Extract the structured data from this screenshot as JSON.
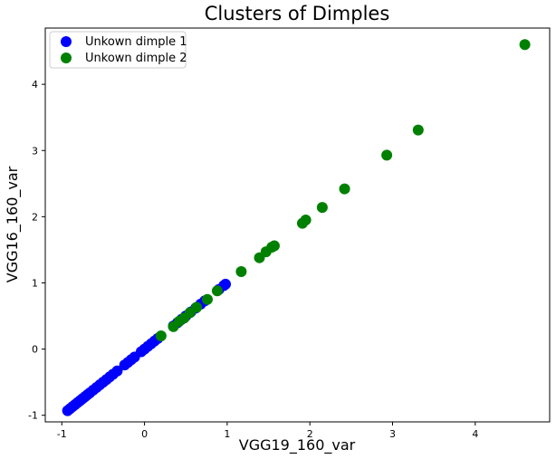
{
  "chart_data": {
    "type": "scatter",
    "title": "Clusters of Dimples",
    "xlabel": "VGG19_160_var",
    "ylabel": "VGG16_160_var",
    "xlim": [
      -1.2,
      4.9
    ],
    "ylim": [
      -1.1,
      4.85
    ],
    "xticks": [
      -1,
      0,
      1,
      2,
      3,
      4
    ],
    "yticks": [
      -1,
      0,
      1,
      2,
      3,
      4
    ],
    "grid": false,
    "legend_position": "top-left",
    "series": [
      {
        "name": "Unkown dimple 1",
        "color": "#0000ff",
        "points": [
          [
            -0.93,
            -0.93
          ],
          [
            -0.9,
            -0.9
          ],
          [
            -0.87,
            -0.87
          ],
          [
            -0.84,
            -0.84
          ],
          [
            -0.81,
            -0.81
          ],
          [
            -0.78,
            -0.78
          ],
          [
            -0.75,
            -0.75
          ],
          [
            -0.72,
            -0.72
          ],
          [
            -0.69,
            -0.69
          ],
          [
            -0.66,
            -0.66
          ],
          [
            -0.62,
            -0.62
          ],
          [
            -0.58,
            -0.58
          ],
          [
            -0.54,
            -0.54
          ],
          [
            -0.5,
            -0.5
          ],
          [
            -0.46,
            -0.46
          ],
          [
            -0.42,
            -0.42
          ],
          [
            -0.38,
            -0.38
          ],
          [
            -0.33,
            -0.33
          ],
          [
            -0.24,
            -0.24
          ],
          [
            -0.2,
            -0.2
          ],
          [
            -0.16,
            -0.16
          ],
          [
            -0.12,
            -0.12
          ],
          [
            -0.04,
            -0.04
          ],
          [
            0.0,
            0.0
          ],
          [
            0.04,
            0.04
          ],
          [
            0.08,
            0.08
          ],
          [
            0.12,
            0.12
          ],
          [
            0.16,
            0.16
          ],
          [
            0.35,
            0.35
          ],
          [
            0.4,
            0.4
          ],
          [
            0.45,
            0.45
          ],
          [
            0.5,
            0.5
          ],
          [
            0.56,
            0.56
          ],
          [
            0.62,
            0.62
          ],
          [
            0.68,
            0.68
          ],
          [
            0.73,
            0.73
          ],
          [
            0.9,
            0.9
          ],
          [
            0.96,
            0.96
          ],
          [
            0.98,
            0.98
          ]
        ]
      },
      {
        "name": "Unkown dimple 2",
        "color": "#008000",
        "points": [
          [
            0.2,
            0.2
          ],
          [
            0.35,
            0.34
          ],
          [
            0.42,
            0.42
          ],
          [
            0.48,
            0.47
          ],
          [
            0.55,
            0.55
          ],
          [
            0.63,
            0.63
          ],
          [
            0.76,
            0.75
          ],
          [
            0.88,
            0.88
          ],
          [
            1.17,
            1.17
          ],
          [
            1.39,
            1.38
          ],
          [
            1.47,
            1.47
          ],
          [
            1.54,
            1.54
          ],
          [
            1.57,
            1.56
          ],
          [
            1.91,
            1.9
          ],
          [
            1.95,
            1.95
          ],
          [
            2.15,
            2.14
          ],
          [
            2.42,
            2.42
          ],
          [
            2.93,
            2.93
          ],
          [
            3.31,
            3.31
          ],
          [
            4.6,
            4.6
          ]
        ]
      }
    ]
  }
}
